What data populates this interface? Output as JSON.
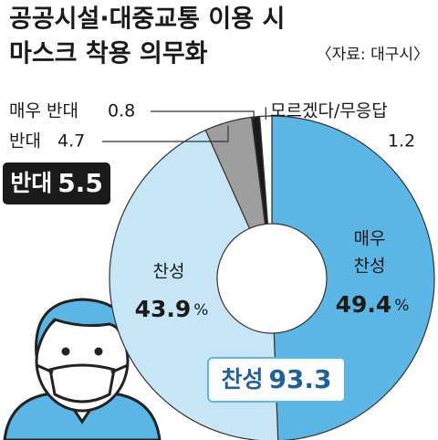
{
  "chart_data": {
    "type": "donut",
    "title": [
      "공공시설·대중교통 이용 시",
      "마스크 착용 의무화"
    ],
    "source": "〈자료: 대구시〉",
    "categories": [
      [
        "매우",
        "찬성"
      ],
      [
        "찬성"
      ],
      [
        "반대"
      ],
      [
        "매우 반대"
      ],
      [
        "모르겠다/무응답"
      ]
    ],
    "values": [
      49.4,
      43.9,
      4.7,
      0.8,
      1.2
    ],
    "colors": [
      "#5bb6e6",
      "#c8e5f6",
      "#9e9e9e",
      "#1a1a1a",
      "#ffffff"
    ],
    "unit": "%",
    "totals": [
      {
        "label": "반대",
        "value": 5.5
      },
      {
        "label": "찬성",
        "value": 93.3
      }
    ]
  }
}
